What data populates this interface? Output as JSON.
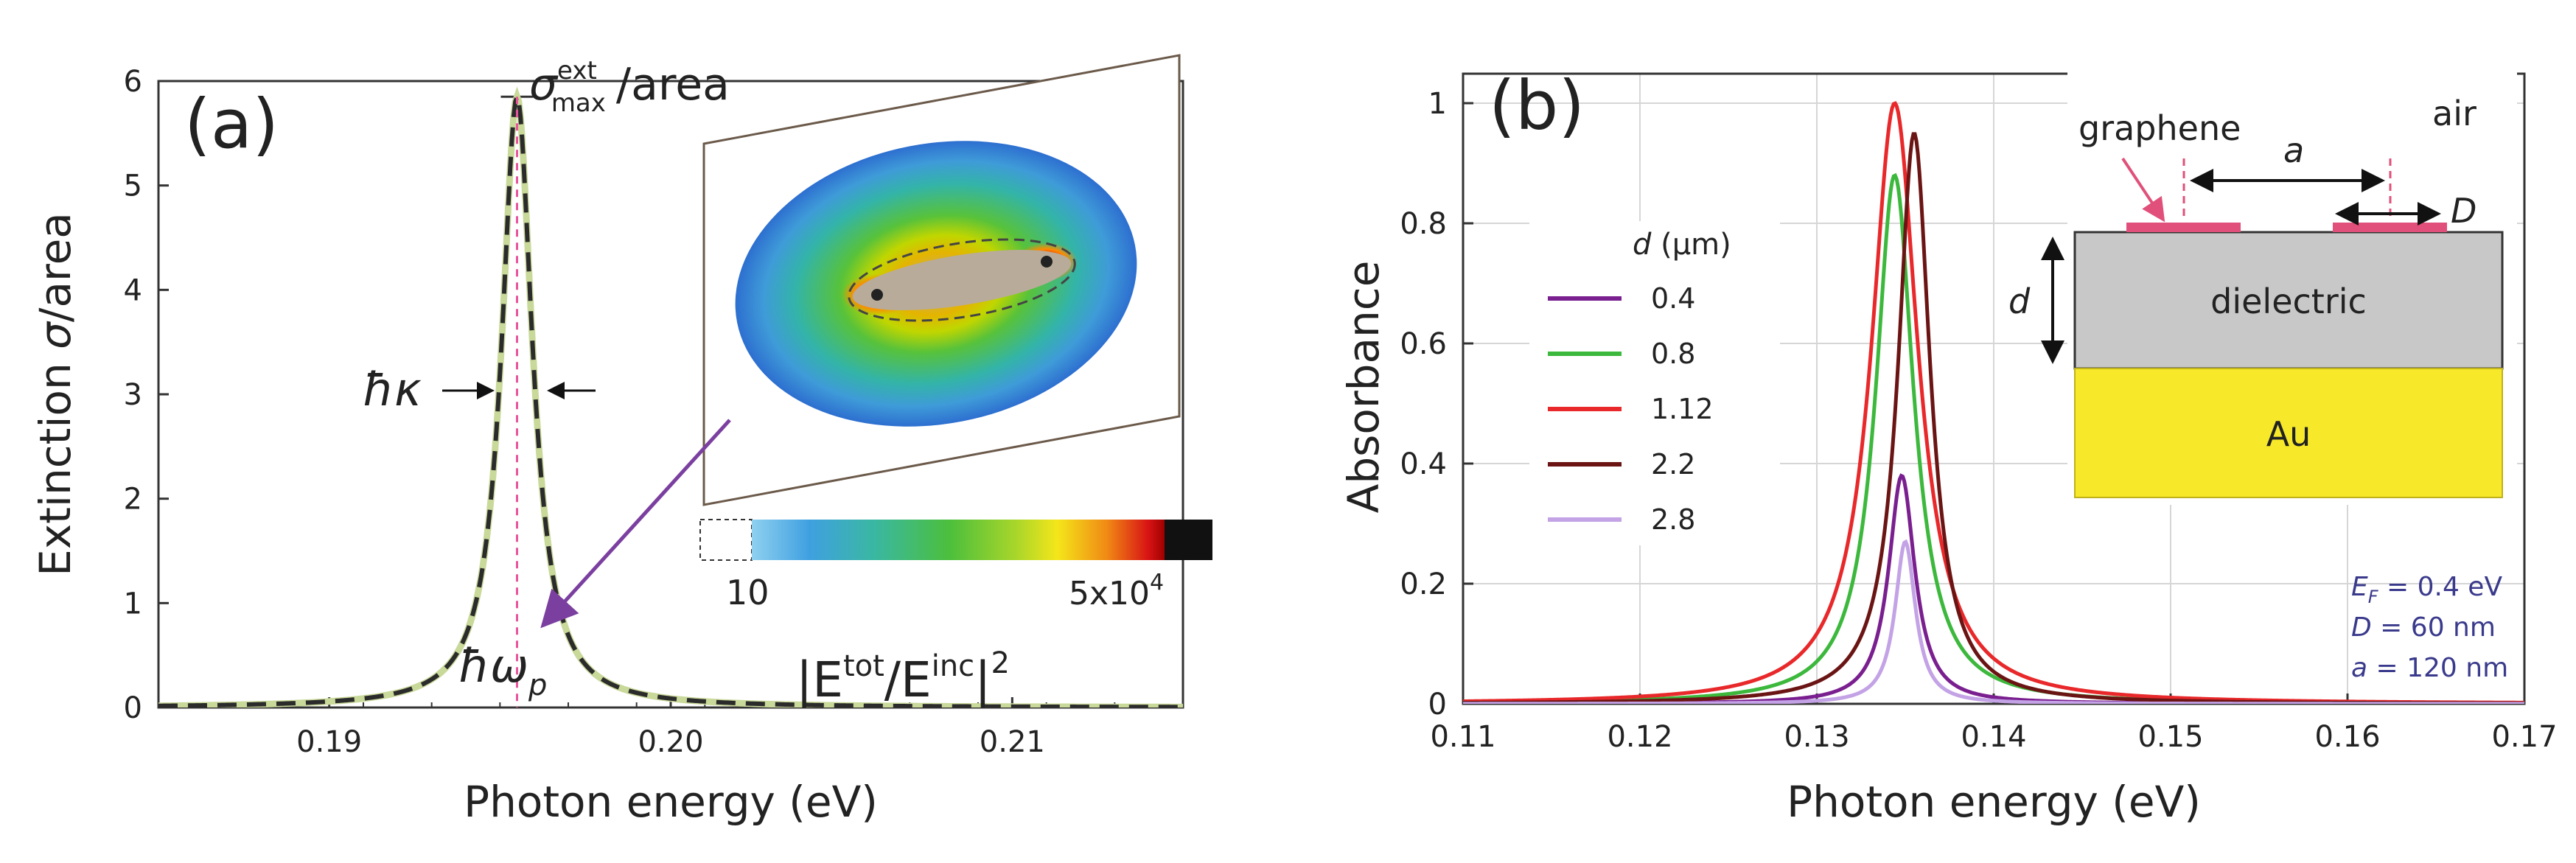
{
  "chart_data": [
    {
      "type": "line",
      "panel_label": "(a)",
      "xlabel": "Photon energy (eV)",
      "ylabel_prefix": "Extinction ",
      "ylabel_symbol": "σ",
      "ylabel_suffix": "/area",
      "xlim": [
        0.185,
        0.215
      ],
      "ylim": [
        0,
        6
      ],
      "x_ticks": [
        0.19,
        0.2,
        0.21
      ],
      "x_tick_labels": [
        "0.19",
        "0.20",
        "0.21"
      ],
      "y_ticks": [
        0,
        1,
        2,
        3,
        4,
        5,
        6
      ],
      "y_tick_labels": [
        "0",
        "1",
        "2",
        "3",
        "4",
        "5",
        "6"
      ],
      "series": [
        {
          "name": "extinction spectrum",
          "color": "#2b2b2b",
          "dash_color": "#c9d99a",
          "lorentzian": {
            "x0": 0.1955,
            "peak": 5.85,
            "half_width": 0.00055
          }
        }
      ],
      "annotations": {
        "peak_label_sigma": "σ",
        "peak_label_super": "ext",
        "peak_label_sub": "max",
        "peak_label_suffix": "/area",
        "linewidth_label": "ħκ",
        "resonance_label": "ħω",
        "resonance_sub": "p",
        "peak_marker_color": "#e8559b"
      },
      "inset": {
        "description_colorbar_min": "10",
        "colorbar_max_base": "5x10",
        "colorbar_max_exp": "4",
        "field_label_open": "|E",
        "field_label_sup1": "tot",
        "field_label_mid": "/E",
        "field_label_sup2": "inc",
        "field_label_close": "|",
        "field_label_exp": "2",
        "arrow_color": "#7b3fa0"
      }
    },
    {
      "type": "line",
      "panel_label": "(b)",
      "xlabel": "Photon energy (eV)",
      "ylabel": "Absorbance",
      "xlim": [
        0.11,
        0.17
      ],
      "ylim": [
        0,
        1.0
      ],
      "x_ticks": [
        0.11,
        0.12,
        0.13,
        0.14,
        0.15,
        0.16,
        0.17
      ],
      "x_tick_labels": [
        "0.11",
        "0.12",
        "0.13",
        "0.14",
        "0.15",
        "0.16",
        "0.17"
      ],
      "y_ticks": [
        0,
        0.2,
        0.4,
        0.6,
        0.8,
        1.0
      ],
      "y_tick_labels": [
        "0",
        "0.2",
        "0.4",
        "0.6",
        "0.8",
        "1"
      ],
      "grid": true,
      "legend_title_var": "d",
      "legend_title_unit": " (μm)",
      "series": [
        {
          "name": "0.4",
          "color": "#7a1f8f",
          "x0": 0.1348,
          "peak": 0.38,
          "half_width": 0.0009
        },
        {
          "name": "0.8",
          "color": "#3cb83c",
          "x0": 0.1344,
          "peak": 0.88,
          "half_width": 0.0013
        },
        {
          "name": "1.12",
          "color": "#e8282a",
          "x0": 0.1344,
          "peak": 1.0,
          "half_width": 0.0016
        },
        {
          "name": "2.2",
          "color": "#6b1414",
          "x0": 0.1355,
          "peak": 0.95,
          "half_width": 0.0011
        },
        {
          "name": "2.8",
          "color": "#c3a2e6",
          "x0": 0.135,
          "peak": 0.27,
          "half_width": 0.0007
        }
      ],
      "inset": {
        "graphene_label": "graphene",
        "air_label": "air",
        "period_label": "a",
        "width_label": "D",
        "thickness_label": "d",
        "dielectric_label": "dielectric",
        "metal_label": "Au",
        "dielectric_color": "#c8c8c8",
        "metal_color": "#f7e92a",
        "ribbon_color": "#e0507a"
      },
      "params": [
        {
          "var": "E",
          "sub": "F",
          "value": " = 0.4 eV"
        },
        {
          "var": "D",
          "sub": "",
          "value": " = 60 nm"
        },
        {
          "var": "a",
          "sub": "",
          "value": " = 120 nm"
        }
      ]
    }
  ]
}
